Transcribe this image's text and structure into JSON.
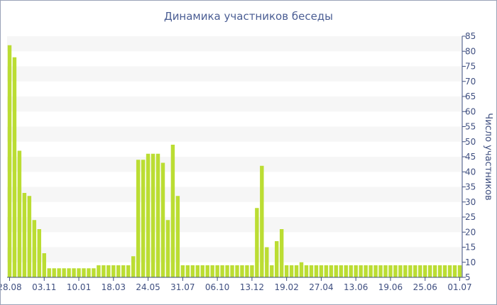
{
  "chart_data": {
    "type": "bar",
    "title": "Динамика участников беседы",
    "xlabel": "",
    "ylabel": "Число участников",
    "y_axis_side": "right",
    "ylim": [
      5,
      85
    ],
    "ytick_step": 5,
    "grid": "alternating horizontal bands",
    "bar_color": "#bbdd33",
    "band_color": "#f6f6f6",
    "axis_color": "#3f4f80",
    "x_tick_labels": [
      "28.08",
      "03.11",
      "10.01",
      "18.03",
      "24.05",
      "31.07",
      "06.10",
      "13.12",
      "19.02",
      "27.04",
      "13.06",
      "19.06",
      "25.06",
      "01.07"
    ],
    "x_tick_bar_index": [
      0,
      7,
      14,
      21,
      28,
      35,
      42,
      49,
      56,
      63,
      70,
      77,
      84,
      91
    ],
    "values": [
      82,
      78,
      47,
      33,
      32,
      24,
      21,
      13,
      8,
      8,
      8,
      8,
      8,
      8,
      8,
      8,
      8,
      8,
      9,
      9,
      9,
      9,
      9,
      9,
      9,
      12,
      44,
      44,
      46,
      46,
      46,
      43,
      24,
      49,
      32,
      9,
      9,
      9,
      9,
      9,
      9,
      9,
      9,
      9,
      9,
      9,
      9,
      9,
      9,
      9,
      28,
      42,
      15,
      9,
      17,
      21,
      9,
      9,
      9,
      10,
      9,
      9,
      9,
      9,
      9,
      9,
      9,
      9,
      9,
      9,
      9,
      9,
      9,
      9,
      9,
      9,
      9,
      9,
      9,
      9,
      9,
      9,
      9,
      9,
      9,
      9,
      9,
      9,
      9,
      9,
      9,
      9
    ]
  }
}
